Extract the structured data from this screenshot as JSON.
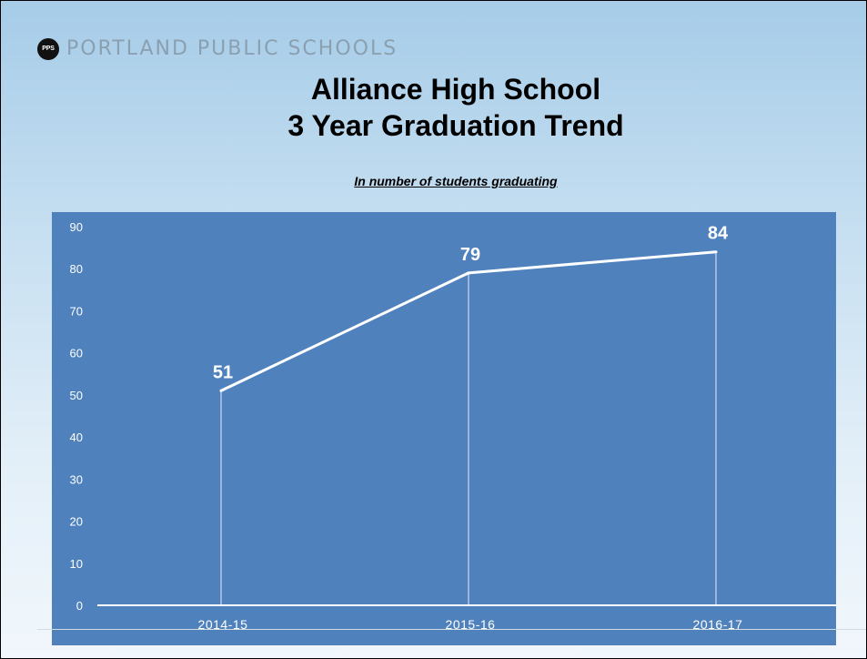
{
  "header": {
    "logo_mark": "PPS",
    "logo_text": "PORTLAND PUBLIC SCHOOLS"
  },
  "colors": {
    "plot_background": "#4f81bd",
    "line": "#ffffff",
    "text_on_plot": "#ffffff"
  },
  "chart_data": {
    "type": "line",
    "title": "Alliance High School",
    "title_line2": "3 Year Graduation Trend",
    "subtitle": "In number of students graduating",
    "xlabel": "",
    "ylabel": "",
    "categories": [
      "2014-15",
      "2015-16",
      "2016-17"
    ],
    "series": [
      {
        "values": [
          51,
          79,
          84
        ]
      }
    ],
    "data_labels": [
      "51",
      "79",
      "84"
    ],
    "ylim": [
      0,
      90
    ],
    "yticks": [
      "0",
      "10",
      "20",
      "30",
      "40",
      "50",
      "60",
      "70",
      "80",
      "90"
    ],
    "grid": false,
    "drop_lines": true,
    "legend": "none"
  }
}
